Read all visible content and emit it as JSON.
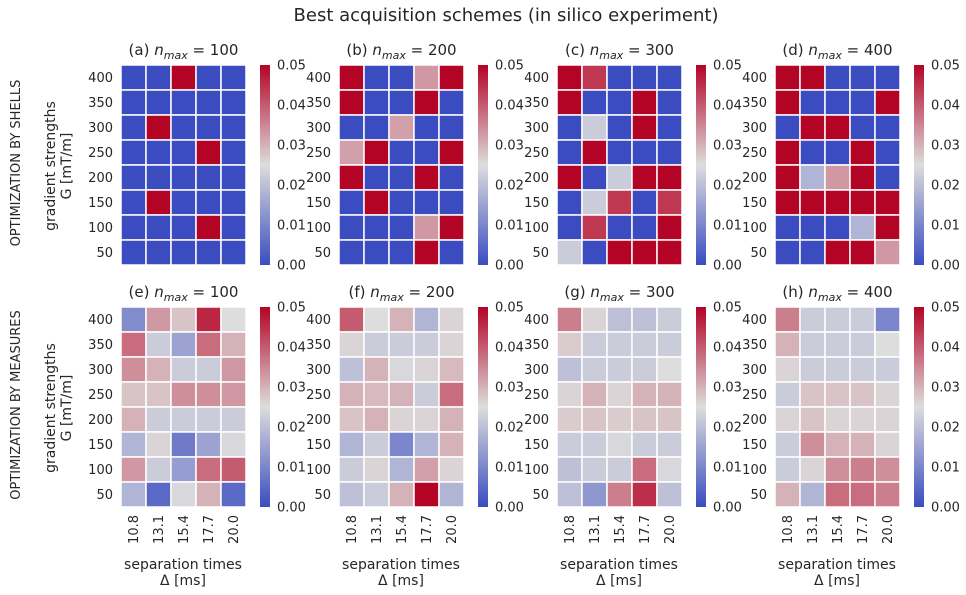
{
  "figure": {
    "title": "Best acquisition schemes (in silico experiment)",
    "row_labels": [
      "OPTIMIZATION BY SHELLS",
      "OPTIMIZATION BY MEASURES"
    ],
    "ylabel_line1": "gradient strengths",
    "ylabel_line2": "G [mT/m]",
    "xlabel_line1": "separation times",
    "xlabel_line2": "Δ [ms]"
  },
  "colormap": {
    "name": "coolwarm",
    "low": "#3b4cc0",
    "mid": "#dddddd",
    "high": "#b40426"
  },
  "chart_data": [
    {
      "type": "heatmap",
      "title": "(a) n_max = 100",
      "x": [
        "10.8",
        "13.1",
        "15.4",
        "17.7",
        "20.0"
      ],
      "y": [
        "400",
        "350",
        "300",
        "250",
        "200",
        "150",
        "100",
        "50"
      ],
      "vmin": 0,
      "vmax": 0.05,
      "colorbar_ticks": [
        "0.00",
        "0.01",
        "0.02",
        "0.03",
        "0.04",
        "0.05"
      ],
      "values": [
        [
          0,
          0,
          0.05,
          0,
          0
        ],
        [
          0,
          0,
          0,
          0,
          0
        ],
        [
          0,
          0.05,
          0,
          0,
          0
        ],
        [
          0,
          0,
          0,
          0.05,
          0
        ],
        [
          0,
          0,
          0,
          0,
          0
        ],
        [
          0,
          0.05,
          0,
          0,
          0
        ],
        [
          0,
          0,
          0,
          0.05,
          0
        ],
        [
          0,
          0,
          0,
          0,
          0
        ]
      ]
    },
    {
      "type": "heatmap",
      "title": "(b) n_max = 200",
      "x": [
        "10.8",
        "13.1",
        "15.4",
        "17.7",
        "20.0"
      ],
      "y": [
        "400",
        "350",
        "300",
        "250",
        "200",
        "150",
        "100",
        "50"
      ],
      "vmin": 0,
      "vmax": 0.05,
      "colorbar_ticks": [
        "0.00",
        "0.01",
        "0.02",
        "0.03",
        "0.04",
        "0.05"
      ],
      "values": [
        [
          0.05,
          0,
          0,
          0.033,
          0.05
        ],
        [
          0.05,
          0,
          0,
          0.05,
          0
        ],
        [
          0,
          0,
          0.032,
          0,
          0
        ],
        [
          0.032,
          0.05,
          0,
          0,
          0.05
        ],
        [
          0.05,
          0,
          0,
          0.05,
          0
        ],
        [
          0,
          0.05,
          0,
          0,
          0
        ],
        [
          0,
          0,
          0,
          0.033,
          0.05
        ],
        [
          0,
          0,
          0,
          0.05,
          0
        ]
      ]
    },
    {
      "type": "heatmap",
      "title": "(c) n_max = 300",
      "x": [
        "10.8",
        "13.1",
        "15.4",
        "17.7",
        "20.0"
      ],
      "y": [
        "400",
        "350",
        "300",
        "250",
        "200",
        "150",
        "100",
        "50"
      ],
      "vmin": 0,
      "vmax": 0.05,
      "colorbar_ticks": [
        "0.00",
        "0.01",
        "0.02",
        "0.03",
        "0.04",
        "0.05"
      ],
      "values": [
        [
          0.05,
          0.044,
          0,
          0,
          0
        ],
        [
          0.05,
          0,
          0,
          0.05,
          0
        ],
        [
          0,
          0.022,
          0,
          0.05,
          0
        ],
        [
          0,
          0.05,
          0,
          0,
          0
        ],
        [
          0.05,
          0,
          0.022,
          0.05,
          0.05
        ],
        [
          0,
          0.022,
          0.044,
          0,
          0.044
        ],
        [
          0,
          0.044,
          0,
          0,
          0.05
        ],
        [
          0.022,
          0,
          0.05,
          0.05,
          0.05
        ]
      ]
    },
    {
      "type": "heatmap",
      "title": "(d) n_max = 400",
      "x": [
        "10.8",
        "13.1",
        "15.4",
        "17.7",
        "20.0"
      ],
      "y": [
        "400",
        "350",
        "300",
        "250",
        "200",
        "150",
        "100",
        "50"
      ],
      "vmin": 0,
      "vmax": 0.05,
      "colorbar_ticks": [
        "0.00",
        "0.01",
        "0.02",
        "0.03",
        "0.04",
        "0.05"
      ],
      "values": [
        [
          0.05,
          0.05,
          0,
          0,
          0
        ],
        [
          0.05,
          0,
          0,
          0,
          0.05
        ],
        [
          0,
          0.05,
          0.05,
          0,
          0
        ],
        [
          0.05,
          0,
          0,
          0.05,
          0
        ],
        [
          0.05,
          0.018,
          0.033,
          0.05,
          0
        ],
        [
          0.05,
          0.05,
          0.05,
          0.05,
          0.05
        ],
        [
          0,
          0,
          0,
          0.018,
          0.05
        ],
        [
          0,
          0,
          0.05,
          0.05,
          0.033
        ]
      ]
    },
    {
      "type": "heatmap",
      "title": "(e) n_max = 100",
      "x": [
        "10.8",
        "13.1",
        "15.4",
        "17.7",
        "20.0"
      ],
      "y": [
        "400",
        "350",
        "300",
        "250",
        "200",
        "150",
        "100",
        "50"
      ],
      "vmin": 0,
      "vmax": 0.05,
      "colorbar_ticks": [
        "0.00",
        "0.01",
        "0.02",
        "0.03",
        "0.04",
        "0.05"
      ],
      "values": [
        [
          0.011,
          0.033,
          0.028,
          0.046,
          0.025
        ],
        [
          0.038,
          0.022,
          0.015,
          0.038,
          0.03
        ],
        [
          0.034,
          0.03,
          0.022,
          0.022,
          0.033
        ],
        [
          0.028,
          0.028,
          0.034,
          0.034,
          0.033
        ],
        [
          0.03,
          0.022,
          0.022,
          0.022,
          0.022
        ],
        [
          0.018,
          0.026,
          0.008,
          0.015,
          0.024
        ],
        [
          0.033,
          0.022,
          0.014,
          0.038,
          0.04
        ],
        [
          0.018,
          0.005,
          0.024,
          0.03,
          0.005
        ]
      ]
    },
    {
      "type": "heatmap",
      "title": "(f) n_max = 200",
      "x": [
        "10.8",
        "13.1",
        "15.4",
        "17.7",
        "20.0"
      ],
      "y": [
        "400",
        "350",
        "300",
        "250",
        "200",
        "150",
        "100",
        "50"
      ],
      "vmin": 0,
      "vmax": 0.05,
      "colorbar_ticks": [
        "0.00",
        "0.01",
        "0.02",
        "0.03",
        "0.04",
        "0.05"
      ],
      "values": [
        [
          0.04,
          0.025,
          0.03,
          0.018,
          0.026
        ],
        [
          0.026,
          0.022,
          0.022,
          0.022,
          0.026
        ],
        [
          0.02,
          0.03,
          0.024,
          0.026,
          0.029
        ],
        [
          0.03,
          0.029,
          0.03,
          0.022,
          0.038
        ],
        [
          0.028,
          0.03,
          0.026,
          0.026,
          0.03
        ],
        [
          0.018,
          0.022,
          0.01,
          0.018,
          0.03
        ],
        [
          0.022,
          0.026,
          0.018,
          0.032,
          0.026
        ],
        [
          0.02,
          0.022,
          0.03,
          0.05,
          0.018
        ]
      ]
    },
    {
      "type": "heatmap",
      "title": "(g) n_max = 300",
      "x": [
        "10.8",
        "13.1",
        "15.4",
        "17.7",
        "20.0"
      ],
      "y": [
        "400",
        "350",
        "300",
        "250",
        "200",
        "150",
        "100",
        "50"
      ],
      "vmin": 0,
      "vmax": 0.05,
      "colorbar_ticks": [
        "0.00",
        "0.01",
        "0.02",
        "0.03",
        "0.04",
        "0.05"
      ],
      "values": [
        [
          0.036,
          0.026,
          0.02,
          0.02,
          0.022
        ],
        [
          0.027,
          0.022,
          0.022,
          0.022,
          0.022
        ],
        [
          0.02,
          0.022,
          0.022,
          0.022,
          0.025
        ],
        [
          0.026,
          0.03,
          0.026,
          0.03,
          0.03
        ],
        [
          0.027,
          0.028,
          0.027,
          0.028,
          0.028
        ],
        [
          0.022,
          0.022,
          0.024,
          0.022,
          0.022
        ],
        [
          0.02,
          0.022,
          0.022,
          0.038,
          0.024
        ],
        [
          0.02,
          0.013,
          0.036,
          0.045,
          0.02
        ]
      ]
    },
    {
      "type": "heatmap",
      "title": "(h) n_max = 400",
      "x": [
        "10.8",
        "13.1",
        "15.4",
        "17.7",
        "20.0"
      ],
      "y": [
        "400",
        "350",
        "300",
        "250",
        "200",
        "150",
        "100",
        "50"
      ],
      "vmin": 0,
      "vmax": 0.05,
      "colorbar_ticks": [
        "0.00",
        "0.01",
        "0.02",
        "0.03",
        "0.04",
        "0.05"
      ],
      "values": [
        [
          0.036,
          0.022,
          0.022,
          0.022,
          0.01
        ],
        [
          0.03,
          0.022,
          0.022,
          0.022,
          0.025
        ],
        [
          0.026,
          0.022,
          0.022,
          0.022,
          0.022
        ],
        [
          0.022,
          0.028,
          0.028,
          0.028,
          0.026
        ],
        [
          0.026,
          0.028,
          0.026,
          0.026,
          0.026
        ],
        [
          0.022,
          0.034,
          0.03,
          0.03,
          0.026
        ],
        [
          0.022,
          0.026,
          0.034,
          0.036,
          0.034
        ],
        [
          0.03,
          0.018,
          0.038,
          0.038,
          0.036
        ]
      ]
    }
  ]
}
